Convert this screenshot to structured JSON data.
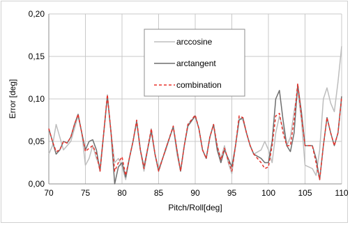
{
  "chart_data": {
    "type": "line",
    "title": "",
    "xlabel": "Pitch/Roll[deg]",
    "ylabel": "Error [deg]",
    "xlim": [
      70,
      110
    ],
    "ylim": [
      0,
      0.2
    ],
    "x_ticks": [
      70,
      75,
      80,
      85,
      90,
      95,
      100,
      105,
      110
    ],
    "x_tick_labels": [
      "70",
      "75",
      "80",
      "85",
      "90",
      "95",
      "100",
      "105",
      "110"
    ],
    "y_ticks": [
      0,
      0.05,
      0.1,
      0.15,
      0.2
    ],
    "y_tick_labels": [
      "0,00",
      "0,05",
      "0,10",
      "0,15",
      "0,20"
    ],
    "grid": true,
    "legend_position": "top-center",
    "series": [
      {
        "name": "arccosine",
        "color": "#bdbdbd",
        "dash": "solid",
        "points": [
          [
            70,
            0.035
          ],
          [
            70.5,
            0.045
          ],
          [
            71,
            0.07
          ],
          [
            71.5,
            0.055
          ],
          [
            72,
            0.04
          ],
          [
            72.5,
            0.045
          ],
          [
            73,
            0.05
          ],
          [
            74,
            0.08
          ],
          [
            74.5,
            0.06
          ],
          [
            75,
            0.022
          ],
          [
            75.5,
            0.03
          ],
          [
            76,
            0.045
          ],
          [
            76.5,
            0.03
          ],
          [
            77,
            0.02
          ],
          [
            77.5,
            0.06
          ],
          [
            78,
            0.105
          ],
          [
            78.5,
            0.06
          ],
          [
            79,
            0.025
          ],
          [
            79.5,
            0.03
          ],
          [
            80,
            0.02
          ],
          [
            80.5,
            0.005
          ],
          [
            81,
            0.03
          ],
          [
            81.5,
            0.05
          ],
          [
            82,
            0.075
          ],
          [
            82.5,
            0.04
          ],
          [
            83,
            0.015
          ],
          [
            84,
            0.065
          ],
          [
            84.5,
            0.035
          ],
          [
            85,
            0.018
          ],
          [
            86,
            0.04
          ],
          [
            87,
            0.068
          ],
          [
            87.5,
            0.035
          ],
          [
            88,
            0.015
          ],
          [
            88.5,
            0.045
          ],
          [
            89,
            0.07
          ],
          [
            90,
            0.08
          ],
          [
            90.5,
            0.065
          ],
          [
            91,
            0.04
          ],
          [
            91.5,
            0.03
          ],
          [
            92,
            0.055
          ],
          [
            92.5,
            0.07
          ],
          [
            93,
            0.045
          ],
          [
            93.5,
            0.03
          ],
          [
            94,
            0.045
          ],
          [
            94.5,
            0.025
          ],
          [
            95,
            0.012
          ],
          [
            95.5,
            0.045
          ],
          [
            96,
            0.078
          ],
          [
            96.5,
            0.075
          ],
          [
            97,
            0.06
          ],
          [
            97.5,
            0.045
          ],
          [
            98,
            0.035
          ],
          [
            99,
            0.04
          ],
          [
            99.5,
            0.05
          ],
          [
            100,
            0.04
          ],
          [
            100.5,
            0.025
          ],
          [
            101,
            0.06
          ],
          [
            101.5,
            0.08
          ],
          [
            102,
            0.065
          ],
          [
            102.5,
            0.045
          ],
          [
            103,
            0.055
          ],
          [
            103.5,
            0.085
          ],
          [
            104,
            0.11
          ],
          [
            104.5,
            0.075
          ],
          [
            105,
            0.022
          ],
          [
            106,
            0.018
          ],
          [
            106.5,
            0.01
          ],
          [
            107,
            0.04
          ],
          [
            107.5,
            0.1
          ],
          [
            108,
            0.113
          ],
          [
            108.5,
            0.095
          ],
          [
            109,
            0.085
          ],
          [
            109.5,
            0.12
          ],
          [
            110,
            0.162
          ]
        ]
      },
      {
        "name": "arctangent",
        "color": "#6e6e6e",
        "dash": "solid",
        "points": [
          [
            70,
            0.065
          ],
          [
            70.5,
            0.05
          ],
          [
            71,
            0.035
          ],
          [
            71.5,
            0.04
          ],
          [
            72,
            0.05
          ],
          [
            72.5,
            0.048
          ],
          [
            73,
            0.055
          ],
          [
            73.5,
            0.07
          ],
          [
            74,
            0.082
          ],
          [
            74.5,
            0.06
          ],
          [
            75,
            0.04
          ],
          [
            75.5,
            0.05
          ],
          [
            76,
            0.052
          ],
          [
            76.5,
            0.04
          ],
          [
            77,
            0.015
          ],
          [
            77.5,
            0.06
          ],
          [
            78,
            0.103
          ],
          [
            78.5,
            0.06
          ],
          [
            79,
            0.0
          ],
          [
            79.5,
            0.02
          ],
          [
            80,
            0.025
          ],
          [
            80.5,
            0.008
          ],
          [
            81,
            0.03
          ],
          [
            81.5,
            0.05
          ],
          [
            82,
            0.073
          ],
          [
            82.5,
            0.04
          ],
          [
            83,
            0.02
          ],
          [
            84,
            0.062
          ],
          [
            84.5,
            0.035
          ],
          [
            85,
            0.015
          ],
          [
            86,
            0.042
          ],
          [
            87,
            0.067
          ],
          [
            87.5,
            0.04
          ],
          [
            88,
            0.015
          ],
          [
            88.5,
            0.045
          ],
          [
            89,
            0.068
          ],
          [
            90,
            0.08
          ],
          [
            90.5,
            0.065
          ],
          [
            91,
            0.04
          ],
          [
            91.5,
            0.03
          ],
          [
            92,
            0.055
          ],
          [
            92.5,
            0.07
          ],
          [
            93,
            0.04
          ],
          [
            93.5,
            0.025
          ],
          [
            94,
            0.04
          ],
          [
            94.5,
            0.03
          ],
          [
            95,
            0.02
          ],
          [
            95.5,
            0.045
          ],
          [
            96,
            0.075
          ],
          [
            96.5,
            0.078
          ],
          [
            97,
            0.06
          ],
          [
            97.5,
            0.045
          ],
          [
            98,
            0.035
          ],
          [
            99,
            0.03
          ],
          [
            99.5,
            0.025
          ],
          [
            100,
            0.025
          ],
          [
            100.5,
            0.05
          ],
          [
            101,
            0.1
          ],
          [
            101.5,
            0.11
          ],
          [
            102,
            0.075
          ],
          [
            102.5,
            0.045
          ],
          [
            103,
            0.038
          ],
          [
            103.5,
            0.06
          ],
          [
            104,
            0.117
          ],
          [
            104.5,
            0.085
          ],
          [
            105,
            0.045
          ],
          [
            106,
            0.045
          ],
          [
            106.5,
            0.03
          ],
          [
            107,
            0.005
          ],
          [
            107.5,
            0.045
          ],
          [
            108,
            0.078
          ],
          [
            108.5,
            0.06
          ],
          [
            109,
            0.045
          ],
          [
            109.5,
            0.06
          ],
          [
            110,
            0.103
          ]
        ]
      },
      {
        "name": "combination",
        "color": "#e8312a",
        "dash": "4,3",
        "points": [
          [
            70,
            0.065
          ],
          [
            70.5,
            0.05
          ],
          [
            71,
            0.038
          ],
          [
            71.5,
            0.04
          ],
          [
            72,
            0.05
          ],
          [
            72.5,
            0.048
          ],
          [
            73,
            0.055
          ],
          [
            73.5,
            0.07
          ],
          [
            74,
            0.082
          ],
          [
            74.5,
            0.06
          ],
          [
            75,
            0.038
          ],
          [
            75.5,
            0.042
          ],
          [
            76,
            0.045
          ],
          [
            76.5,
            0.035
          ],
          [
            77,
            0.015
          ],
          [
            77.5,
            0.06
          ],
          [
            78,
            0.105
          ],
          [
            78.5,
            0.06
          ],
          [
            79,
            0.015
          ],
          [
            79.5,
            0.025
          ],
          [
            80,
            0.032
          ],
          [
            80.5,
            0.01
          ],
          [
            81,
            0.03
          ],
          [
            81.5,
            0.05
          ],
          [
            82,
            0.075
          ],
          [
            82.5,
            0.04
          ],
          [
            83,
            0.018
          ],
          [
            84,
            0.065
          ],
          [
            84.5,
            0.035
          ],
          [
            85,
            0.015
          ],
          [
            86,
            0.042
          ],
          [
            87,
            0.068
          ],
          [
            87.5,
            0.04
          ],
          [
            88,
            0.015
          ],
          [
            88.5,
            0.045
          ],
          [
            89,
            0.07
          ],
          [
            90,
            0.081
          ],
          [
            90.5,
            0.065
          ],
          [
            91,
            0.04
          ],
          [
            91.5,
            0.03
          ],
          [
            92,
            0.055
          ],
          [
            92.5,
            0.07
          ],
          [
            93,
            0.045
          ],
          [
            93.5,
            0.028
          ],
          [
            94,
            0.042
          ],
          [
            94.5,
            0.028
          ],
          [
            95,
            0.015
          ],
          [
            95.5,
            0.045
          ],
          [
            96,
            0.08
          ],
          [
            96.5,
            0.078
          ],
          [
            97,
            0.06
          ],
          [
            97.5,
            0.045
          ],
          [
            98,
            0.035
          ],
          [
            99,
            0.025
          ],
          [
            99.5,
            0.018
          ],
          [
            100,
            0.02
          ],
          [
            100.5,
            0.045
          ],
          [
            101,
            0.08
          ],
          [
            101.5,
            0.083
          ],
          [
            102,
            0.06
          ],
          [
            102.5,
            0.045
          ],
          [
            103,
            0.045
          ],
          [
            103.5,
            0.075
          ],
          [
            104,
            0.118
          ],
          [
            104.5,
            0.08
          ],
          [
            105,
            0.045
          ],
          [
            106,
            0.045
          ],
          [
            106.5,
            0.025
          ],
          [
            107,
            0.005
          ],
          [
            107.5,
            0.045
          ],
          [
            108,
            0.078
          ],
          [
            108.5,
            0.06
          ],
          [
            109,
            0.045
          ],
          [
            109.5,
            0.06
          ],
          [
            110,
            0.102
          ]
        ]
      }
    ]
  }
}
